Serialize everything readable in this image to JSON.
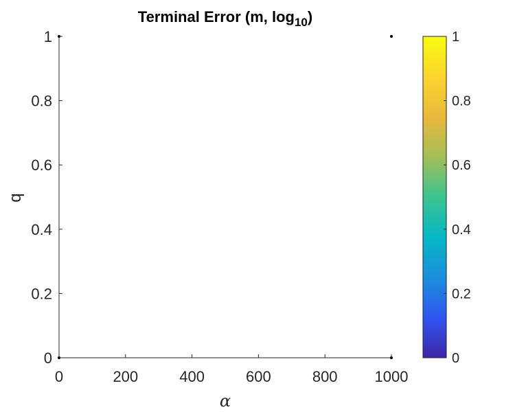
{
  "chart_data": {
    "type": "heatmap",
    "title": "Terminal Error (m, log",
    "title_subscript": "10",
    "title_suffix": ")",
    "xlabel": "α",
    "ylabel": "q",
    "xlim": [
      0,
      1000
    ],
    "ylim": [
      0,
      1
    ],
    "xticks": [
      0,
      200,
      400,
      600,
      800,
      1000
    ],
    "xtick_labels": [
      "0",
      "200",
      "400",
      "600",
      "800",
      "1000"
    ],
    "yticks": [
      0,
      0.2,
      0.4,
      0.6,
      0.8,
      1
    ],
    "ytick_labels": [
      "0",
      "0.2",
      "0.4",
      "0.6",
      "0.8",
      "1"
    ],
    "points": [
      {
        "x": 0,
        "y": 1
      },
      {
        "x": 1000,
        "y": 1
      },
      {
        "x": 0,
        "y": 0
      },
      {
        "x": 1000,
        "y": 0
      }
    ],
    "colorbar": {
      "range": [
        0,
        1
      ],
      "ticks": [
        0,
        0.2,
        0.4,
        0.6,
        0.8,
        1
      ],
      "tick_labels": [
        "0",
        "0.2",
        "0.4",
        "0.6",
        "0.8",
        "1"
      ],
      "colormap": "parula",
      "colors": [
        "#3e26a8",
        "#2e56f0",
        "#1c8fdc",
        "#06b7c4",
        "#3bc48f",
        "#a4be58",
        "#e9b93c",
        "#fbd530",
        "#f9fb0e"
      ]
    },
    "grid": false
  }
}
